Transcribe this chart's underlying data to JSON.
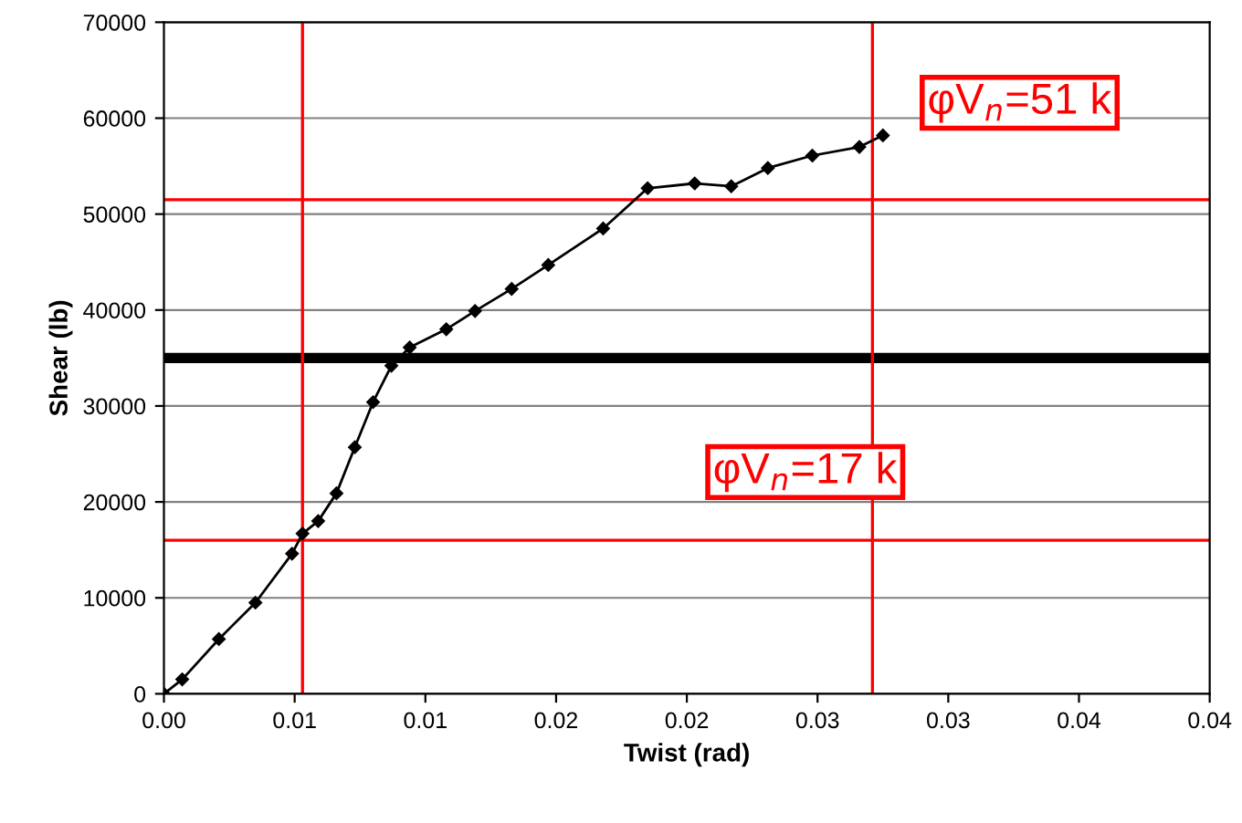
{
  "chart_data": {
    "type": "line",
    "xlabel": "Twist (rad)",
    "ylabel": "Shear (lb)",
    "x": [
      0,
      0.0007,
      0.0021,
      0.0035,
      0.0049,
      0.0053,
      0.0059,
      0.0066,
      0.0073,
      0.008,
      0.0087,
      0.0094,
      0.0108,
      0.0119,
      0.0133,
      0.0147,
      0.0168,
      0.0185,
      0.0203,
      0.0217,
      0.0231,
      0.0248,
      0.0266,
      0.0275
    ],
    "series": [
      {
        "color": "#000000",
        "values": [
          0,
          1500,
          5700,
          9500,
          14600,
          16700,
          18000,
          20900,
          25700,
          30400,
          34200,
          36100,
          38000,
          39900,
          42200,
          44700,
          48500,
          52700,
          53200,
          52900,
          54800,
          56100,
          57000,
          58200
        ]
      }
    ],
    "xlim": [
      0,
      0.04
    ],
    "xticks": [
      {
        "value": 0,
        "label": "0.00"
      },
      {
        "value": 0.005,
        "label": "0.01"
      },
      {
        "value": 0.01,
        "label": "0.01"
      },
      {
        "value": 0.015,
        "label": "0.02"
      },
      {
        "value": 0.02,
        "label": "0.02"
      },
      {
        "value": 0.025,
        "label": "0.03"
      },
      {
        "value": 0.03,
        "label": "0.03"
      },
      {
        "value": 0.035,
        "label": "0.04"
      },
      {
        "value": 0.04,
        "label": "0.04"
      }
    ],
    "ylim": [
      0,
      70000
    ],
    "yticks": [
      0,
      10000,
      20000,
      30000,
      40000,
      50000,
      60000,
      70000
    ],
    "annotations": [
      "φV$_{n}$=51 k",
      "φV$_{n}$=17 k"
    ],
    "grid": "y",
    "marker": "diamond",
    "line_style": "solid",
    "ref_lines": [
      {
        "axis": "y",
        "value": 35000,
        "color": "#000000"
      },
      {
        "axis": "y",
        "value": 51500,
        "color": "#ff0000"
      },
      {
        "axis": "y",
        "value": 16000,
        "color": "#ff0000"
      },
      {
        "axis": "x",
        "value": 0.0053,
        "color": "#ff0000"
      },
      {
        "axis": "x",
        "value": 0.0271,
        "color": "#ff0000"
      }
    ]
  }
}
